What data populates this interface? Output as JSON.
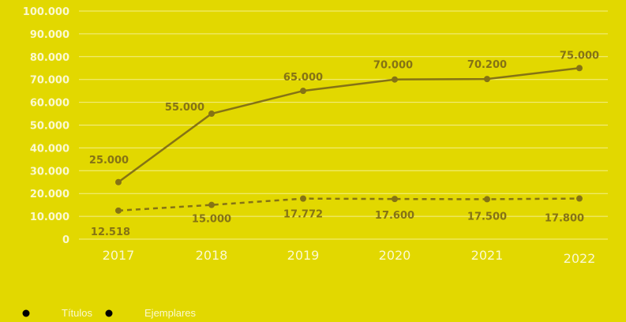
{
  "colors": {
    "background": "#e2d800",
    "series": "#857315",
    "grid": "#f4ef8a",
    "tick": "#fbf9d0"
  },
  "chart_data": {
    "type": "line",
    "x": [
      "2017",
      "2018",
      "2019",
      "2020",
      "2021",
      "2022"
    ],
    "series": [
      {
        "name": "Títulos",
        "style": "dashed",
        "values": [
          12518,
          15000,
          17772,
          17600,
          17500,
          17800
        ],
        "labels": [
          "12.518",
          "15.000",
          "17.772",
          "17.600",
          "17.500",
          "17.800"
        ],
        "label_position": "below"
      },
      {
        "name": "Ejemplares",
        "style": "solid",
        "values": [
          25000,
          55000,
          65000,
          70000,
          70200,
          75000
        ],
        "labels": [
          "25.000",
          "55.000",
          "65.000",
          "70.000",
          "70.200",
          "75.000"
        ],
        "label_position": "above"
      }
    ],
    "ylim": [
      0,
      100000
    ],
    "yticks": [
      "0",
      "10.000",
      "20.000",
      "30.000",
      "40.000",
      "50.000",
      "60.000",
      "70.000",
      "80.000",
      "90.000",
      "100.000"
    ],
    "grid": true,
    "legend_position": "bottom-left"
  },
  "legend": {
    "items": [
      {
        "label": "Títulos",
        "style": "dashed"
      },
      {
        "label": "Ejemplares",
        "style": "solid"
      }
    ]
  }
}
